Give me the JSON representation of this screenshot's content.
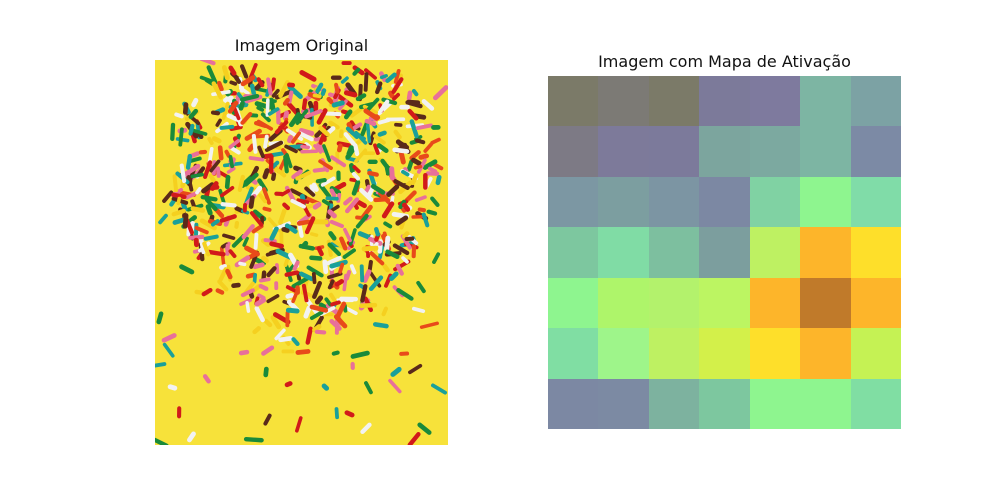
{
  "titles": {
    "left": "Imagem Original",
    "right": "Imagem com Mapa de Ativação"
  },
  "original_image": {
    "subject": "heart-shaped pile of colorful sprinkles on yellow background",
    "background_color": "#f7e23a",
    "sprinkle_colors": [
      "#d11a1a",
      "#1a8a3a",
      "#f2f2f2",
      "#f5d020",
      "#5a2a1a",
      "#e8709a",
      "#1aa09a",
      "#e84a1a"
    ]
  },
  "activation_map": {
    "rows": 7,
    "cols": 7,
    "colors": [
      [
        "#7b7a68",
        "#7c7a75",
        "#7b7a68",
        "#7c7a9a",
        "#7e7a9e",
        "#7db5a3",
        "#7ca2a4"
      ],
      [
        "#7d7a85",
        "#7d7a9a",
        "#7c7a9b",
        "#7ca59e",
        "#7ca9a0",
        "#7db5a3",
        "#7c8aa5"
      ],
      [
        "#7c97a3",
        "#7c9ea0",
        "#7c95a3",
        "#7c88a3",
        "#80d2a3",
        "#8ef58f",
        "#80dca8"
      ],
      [
        "#7dc79f",
        "#80dca5",
        "#7dbf9f",
        "#7c9e9e",
        "#bef162",
        "#fdb52a",
        "#fedf2a"
      ],
      [
        "#8ef58f",
        "#aef56a",
        "#b3f26c",
        "#bcf562",
        "#fdb52a",
        "#c07a2a",
        "#fdb52a"
      ],
      [
        "#80dea3",
        "#9ef58a",
        "#bef162",
        "#d3f04a",
        "#fedf2a",
        "#fdb52a",
        "#c5f254"
      ],
      [
        "#7c88a3",
        "#7c8aa3",
        "#7db29f",
        "#7dc79f",
        "#8ef58f",
        "#8ef58f",
        "#80dea3"
      ]
    ]
  }
}
